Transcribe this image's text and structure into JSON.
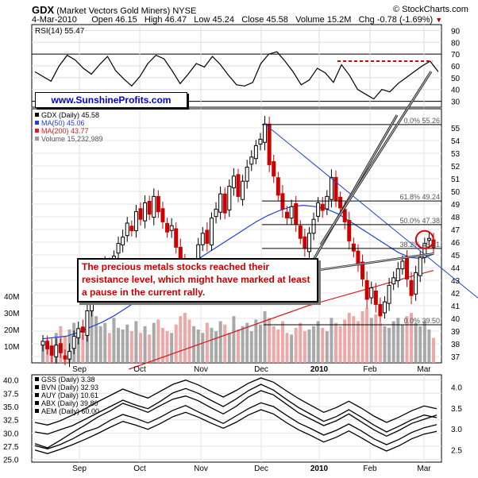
{
  "header": {
    "symbol": "GDX",
    "name": "(Market Vectors Gold Miners)",
    "exchange": "NYSE",
    "brand": "© StockCharts.com",
    "date": "4-Mar-2010",
    "open": "Open 46.15",
    "high": "High 46.47",
    "low": "Low 45.24",
    "close": "Close 45.58",
    "volume": "Volume 15.2M",
    "change": "Chg -0.78 (-1.69%)"
  },
  "watermark": "www.SunshineProfits.com",
  "annotation": "The precious metals stocks reached their resistance level, which might have marked at least a pause in the current rally.",
  "colors": {
    "up_candle": "#000000",
    "down_candle": "#cc0000",
    "ma50": "#1f3fd6",
    "ma200": "#d42020",
    "volume_up": "#9a9a9a",
    "volume_down": "#e79a9a",
    "fib_line": "#000000",
    "trend_blue": "#1f3fd6",
    "rsi_dashed": "#dd0000",
    "circle": "#dd0000"
  },
  "chart_data": [
    {
      "type": "line",
      "title": "RSI(14) 55.47",
      "legend": [
        {
          "name": "RSI(14) 55.47",
          "color": "#000000"
        }
      ],
      "x_labels": [
        "Sep",
        "Oct",
        "Nov",
        "Dec",
        "2010",
        "Feb",
        "Mar"
      ],
      "x": [
        0,
        4,
        8,
        12,
        16,
        20,
        24,
        28,
        32,
        36,
        40,
        44,
        48,
        52,
        56,
        60,
        64,
        68,
        72,
        76,
        80,
        84,
        88,
        92,
        96,
        100,
        104,
        108,
        112,
        116,
        120,
        124,
        128,
        132,
        136,
        140,
        144,
        148,
        152,
        156,
        160,
        164,
        168,
        172,
        176,
        180,
        184,
        188,
        192,
        196,
        200
      ],
      "series": [
        {
          "name": "RSI(14) 55.47",
          "values": [
            55,
            51,
            47,
            60,
            69,
            65,
            58,
            53,
            61,
            68,
            56,
            49,
            43,
            51,
            62,
            69,
            66,
            56,
            45,
            53,
            62,
            59,
            68,
            61,
            52,
            44,
            43,
            46,
            62,
            70,
            72,
            64,
            55,
            44,
            48,
            58,
            54,
            46,
            61,
            52,
            40,
            36,
            32,
            40,
            38,
            45,
            50,
            55,
            60,
            64,
            55
          ]
        }
      ],
      "yticks": [
        30,
        40,
        50,
        60,
        70,
        80,
        90
      ],
      "ylim": [
        25,
        95
      ],
      "reference_lines": [
        30,
        70
      ],
      "annotation_line": {
        "style": "dashed",
        "color": "#dd0000",
        "value": 64,
        "from_x": 150,
        "to_x": 197
      }
    },
    {
      "type": "candlestick",
      "title": "GDX (Daily) 45.58",
      "legend": [
        {
          "name": "GDX (Daily) 45.58",
          "color": "#000000"
        },
        {
          "name": "MA(50) 45.06",
          "color": "#1f3fd6"
        },
        {
          "name": "MA(200) 43.77",
          "color": "#d42020"
        },
        {
          "name": "Volume 15,232,989",
          "color": "#9a9a9a"
        }
      ],
      "x_labels": [
        "Sep",
        "Oct",
        "Nov",
        "Dec",
        "2010",
        "Feb",
        "Mar"
      ],
      "ylim": [
        36.5,
        56.5
      ],
      "yticks": [
        37,
        38,
        39,
        40,
        41,
        42,
        43,
        44,
        45,
        46,
        47,
        48,
        49,
        50,
        51,
        52,
        53,
        54,
        55
      ],
      "volume_ylim": [
        0,
        50
      ],
      "volume_ticks": [
        "10M",
        "20M",
        "30M",
        "40M"
      ],
      "volume_tick_values": [
        10,
        20,
        30,
        40
      ],
      "closes": [
        38.2,
        37.6,
        37.1,
        37.9,
        37.3,
        36.8,
        37.4,
        38.6,
        39.2,
        38.9,
        40.6,
        41.5,
        42.3,
        43.1,
        44.4,
        43.8,
        44.9,
        45.9,
        46.4,
        47.5,
        46.9,
        48.4,
        47.8,
        49.1,
        48.2,
        49.6,
        48.4,
        47.6,
        46.8,
        47.3,
        45.6,
        44.3,
        43.2,
        42.3,
        44.1,
        45.8,
        46.7,
        45.9,
        47.9,
        48.6,
        49.8,
        48.3,
        50.4,
        51.2,
        49.6,
        50.8,
        51.9,
        52.7,
        53.6,
        54.1,
        55.3,
        52.1,
        51.2,
        49.7,
        48.6,
        47.9,
        48.8,
        47.4,
        46.3,
        45.5,
        46.7,
        47.8,
        49.1,
        48.5,
        49.6,
        51.1,
        49.3,
        48.7,
        47.6,
        46.1,
        45.3,
        44.2,
        43.1,
        41.5,
        42.4,
        41.1,
        40.2,
        41.3,
        42.6,
        43.2,
        43.9,
        44.5,
        43.1,
        41.8,
        43.6,
        44.8,
        45.9,
        46.3,
        45.58
      ],
      "ranges": [
        1.1,
        1.0,
        1.3,
        1.2,
        0.9,
        1.1,
        1.4,
        1.0,
        1.2,
        1.3,
        1.1,
        1.0,
        1.5,
        1.2,
        1.1,
        1.4,
        1.0,
        1.2,
        1.3,
        1.1,
        1.0,
        1.2,
        1.1,
        1.3,
        1.0,
        1.4,
        1.1,
        1.2,
        1.0,
        1.3,
        1.1,
        1.5,
        1.2,
        1.0,
        1.3,
        1.2,
        1.1,
        1.4,
        1.0,
        1.2,
        1.3,
        1.1,
        1.2,
        1.4,
        1.0,
        1.1,
        1.3,
        1.2,
        1.0,
        1.1,
        1.4,
        1.3,
        1.2,
        1.0,
        1.5,
        1.1,
        1.2,
        1.3,
        1.0,
        1.4,
        1.1,
        1.2,
        1.0,
        1.3,
        1.1,
        1.4,
        1.2,
        1.0,
        1.3,
        1.5,
        1.1,
        1.2,
        1.3,
        1.6,
        1.1,
        1.4,
        1.2,
        1.0,
        1.3,
        1.1,
        1.2,
        1.0,
        1.4,
        1.5,
        1.2,
        1.1,
        1.0,
        1.2,
        1.23
      ],
      "ma50": [
        38.4,
        38.5,
        38.6,
        38.9,
        39.3,
        39.7,
        40.2,
        40.8,
        41.4,
        42.0,
        42.6,
        43.2,
        43.9,
        44.6,
        45.2,
        45.8,
        46.4,
        47.0,
        47.6,
        48.1,
        48.5,
        48.8,
        48.9,
        48.8,
        48.6,
        48.2,
        47.6,
        47.0,
        46.4,
        45.8,
        45.2,
        44.8,
        44.7,
        45.06
      ],
      "ma200": [
        36.0,
        36.5,
        37.0,
        37.5,
        38.0,
        38.5,
        39.0,
        39.5,
        40.0,
        40.5,
        41.0,
        41.4,
        41.8,
        42.2,
        42.6,
        43.0,
        43.4,
        43.77
      ],
      "fibonacci": [
        {
          "label": "0.0% 55.26",
          "value": 55.26
        },
        {
          "label": "61.8% 49.24",
          "value": 49.24
        },
        {
          "label": "50.0% 47.38",
          "value": 47.38
        },
        {
          "label": "38.2% 45.51",
          "value": 45.51
        },
        {
          "label": "0.0% 39.50",
          "value": 39.5
        }
      ],
      "volume": [
        12,
        14,
        10,
        18,
        22,
        16,
        20,
        24,
        19,
        17,
        26,
        31,
        28,
        22,
        24,
        18,
        27,
        21,
        20,
        23,
        19,
        25,
        18,
        22,
        17,
        24,
        26,
        21,
        19,
        18,
        23,
        28,
        30,
        26,
        22,
        20,
        18,
        24,
        21,
        19,
        25,
        23,
        18,
        28,
        20,
        22,
        24,
        19,
        26,
        23,
        31,
        27,
        22,
        20,
        25,
        18,
        17,
        21,
        24,
        19,
        20,
        22,
        25,
        21,
        19,
        27,
        24,
        22,
        26,
        30,
        28,
        25,
        31,
        33,
        27,
        29,
        24,
        22,
        21,
        25,
        27,
        23,
        28,
        30,
        24,
        22,
        25,
        20,
        15
      ]
    },
    {
      "type": "line",
      "title": "",
      "legend": [
        {
          "name": "GSS (Daily) 3.38",
          "color": "#000000"
        },
        {
          "name": "BVN (Daily) 32.93",
          "color": "#000000"
        },
        {
          "name": "AUY (Daily) 10.61",
          "color": "#000000"
        },
        {
          "name": "ABX (Daily) 39.80",
          "color": "#000000"
        },
        {
          "name": "AEM (Daily) 60.00",
          "color": "#000000"
        }
      ],
      "x_labels": [
        "Sep",
        "Oct",
        "Nov",
        "Dec",
        "2010",
        "Feb",
        "Mar"
      ],
      "left_ylim": [
        24.5,
        41
      ],
      "left_yticks": [
        25.0,
        27.5,
        30.0,
        32.5,
        35.0,
        37.5,
        40.0
      ],
      "right_ylim": [
        2.2,
        4.3
      ],
      "right_yticks": [
        2.5,
        3.0,
        3.5,
        4.0
      ],
      "series": [
        {
          "name": "GSS (Daily) 3.38",
          "values": [
            28.0,
            27.2,
            28.6,
            30.1,
            31.5,
            33.0,
            34.2,
            35.6,
            34.8,
            33.9,
            35.2,
            36.4,
            37.0,
            36.1,
            34.8,
            33.6,
            35.0,
            36.8,
            38.0,
            37.2,
            35.5,
            33.8,
            32.6,
            31.4,
            32.3,
            33.6,
            32.1,
            30.6,
            29.4,
            30.5,
            31.8,
            32.6,
            33.4
          ]
        },
        {
          "name": "BVN (Daily) 32.93",
          "values": [
            30.2,
            29.8,
            30.6,
            31.4,
            32.6,
            33.8,
            35.0,
            36.2,
            35.3,
            34.6,
            36.0,
            37.6,
            38.4,
            37.5,
            36.2,
            35.0,
            36.4,
            38.0,
            39.2,
            38.1,
            36.4,
            34.8,
            33.5,
            32.2,
            33.1,
            34.4,
            33.0,
            31.5,
            30.2,
            31.3,
            32.5,
            33.4,
            32.9
          ]
        },
        {
          "name": "AUY (Daily) 10.61",
          "values": [
            27.6,
            27.0,
            27.8,
            28.9,
            30.2,
            31.0,
            32.4,
            33.5,
            32.8,
            31.9,
            33.0,
            34.3,
            35.2,
            34.0,
            32.9,
            31.8,
            33.2,
            34.6,
            35.7,
            35.0,
            33.4,
            31.9,
            30.8,
            29.6,
            30.5,
            31.7,
            30.4,
            28.9,
            27.8,
            28.8,
            30.1,
            31.0,
            31.6
          ]
        },
        {
          "name": "ABX (Daily) 39.80",
          "values": [
            26.8,
            26.1,
            26.9,
            27.8,
            28.8,
            29.9,
            31.1,
            32.2,
            31.5,
            30.7,
            31.8,
            33.1,
            33.9,
            33.0,
            31.9,
            30.9,
            32.0,
            33.4,
            34.4,
            33.6,
            32.0,
            30.6,
            29.5,
            28.3,
            29.2,
            30.4,
            29.1,
            27.7,
            26.6,
            27.6,
            28.9,
            29.8,
            30.3
          ]
        },
        {
          "name": "AEM (Daily) 60.00",
          "values": [
            32.0,
            31.5,
            32.3,
            33.4,
            34.6,
            35.9,
            37.1,
            38.3,
            37.4,
            36.6,
            37.9,
            39.2,
            40.0,
            39.1,
            37.9,
            36.8,
            38.0,
            39.4,
            40.4,
            39.6,
            38.0,
            36.5,
            35.2,
            33.9,
            34.8,
            36.0,
            34.7,
            33.2,
            32.0,
            33.0,
            34.2,
            35.1,
            34.6
          ]
        }
      ]
    }
  ]
}
